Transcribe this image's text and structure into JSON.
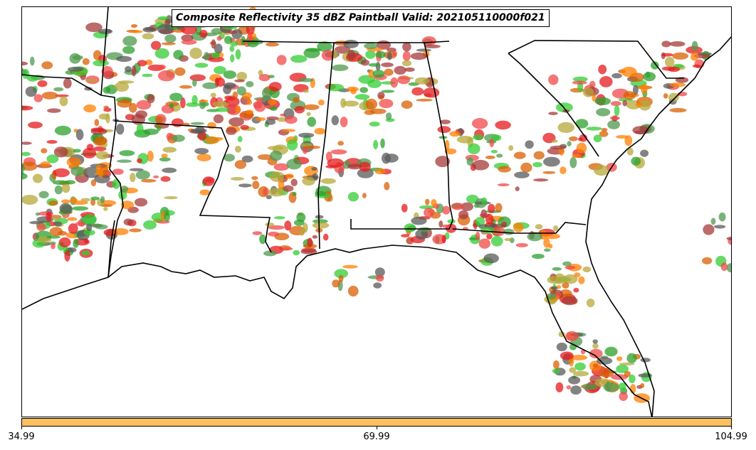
{
  "title": "Composite Reflectivity 35 dBZ Paintball Valid: 202105110000f021",
  "colorbar": {
    "color": "#ffc060",
    "ticks": [
      "34.99",
      "69.99",
      "104.99"
    ]
  },
  "palette": [
    "#e41a1c",
    "#ff7f00",
    "#d95f02",
    "#33cc33",
    "#2ca02c",
    "#a63a3a",
    "#b5a83a",
    "#595959",
    "#4d9a4d",
    "#f04848"
  ]
}
